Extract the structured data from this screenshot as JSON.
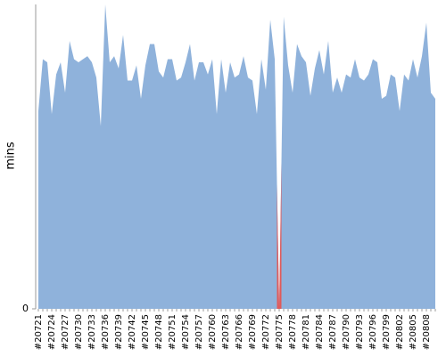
{
  "chart_data": {
    "type": "area",
    "y_label": "mins",
    "categories": [
      "#20721",
      null,
      null,
      "#20724",
      null,
      null,
      "#20727",
      null,
      null,
      "#20730",
      null,
      null,
      "#20733",
      null,
      null,
      "#20736",
      null,
      null,
      "#20739",
      null,
      null,
      "#20742",
      null,
      null,
      "#20745",
      null,
      null,
      "#20748",
      null,
      null,
      "#20751",
      null,
      null,
      "#20754",
      null,
      null,
      "#20757",
      null,
      null,
      "#20760",
      null,
      null,
      "#20763",
      null,
      null,
      "#20766",
      null,
      null,
      "#20769",
      null,
      null,
      "#20772",
      null,
      null,
      "#20775",
      null,
      null,
      "#20778",
      null,
      null,
      "#20781",
      null,
      null,
      "#20784",
      null,
      null,
      "#20787",
      null,
      null,
      "#20790",
      null,
      null,
      "#20793",
      null,
      null,
      "#20796",
      null,
      null,
      "#20799",
      null,
      null,
      "#20802",
      null,
      null,
      "#20805",
      null,
      null,
      "#20808",
      null,
      null
    ],
    "values": [
      65,
      82,
      81,
      64,
      77,
      81,
      71,
      88,
      82,
      81,
      82,
      83,
      81,
      76,
      60,
      100,
      81,
      83,
      79,
      90,
      75,
      75,
      80,
      69,
      80,
      87,
      87,
      78,
      76,
      82,
      82,
      75,
      76,
      81,
      87,
      75,
      81,
      81,
      77,
      82,
      64,
      82,
      71,
      81,
      76,
      77,
      83,
      76,
      75,
      64,
      82,
      72,
      95,
      82,
      0,
      96,
      80,
      71,
      87,
      83,
      81,
      70,
      79,
      85,
      77,
      88,
      71,
      76,
      71,
      77,
      76,
      82,
      76,
      75,
      77,
      82,
      81,
      69,
      70,
      77,
      76,
      65,
      77,
      75,
      82,
      76,
      83,
      94,
      71,
      69
    ],
    "color": "#8fb2db",
    "highlight_color": "#e05a5a",
    "highlight_index": 54,
    "ylim": [
      0,
      100
    ],
    "yticks": [
      0
    ]
  }
}
